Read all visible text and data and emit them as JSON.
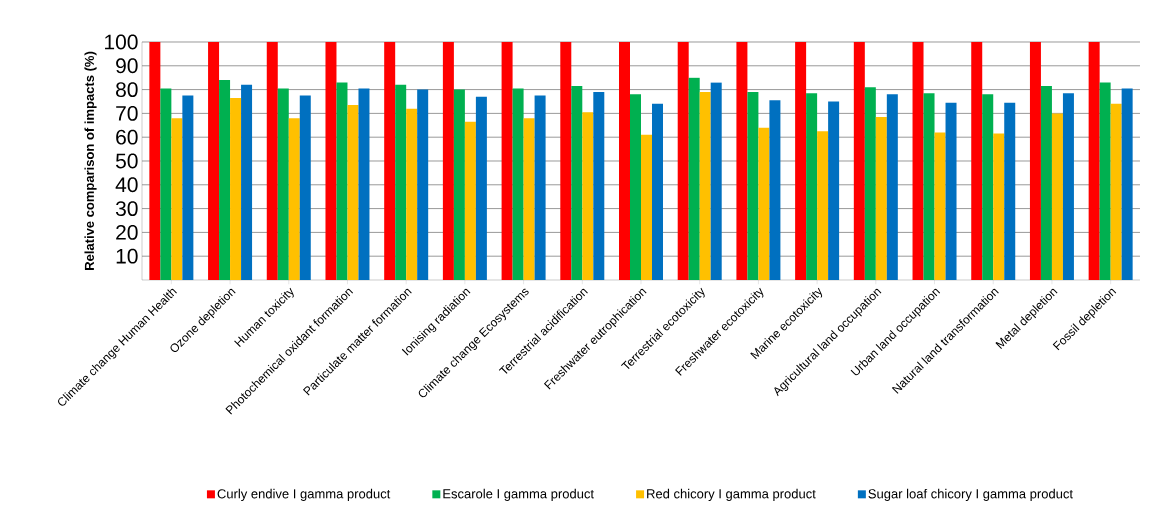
{
  "chart_data": {
    "type": "bar",
    "ylabel": "Relative comparison of impacts (%)",
    "categories": [
      "Climate change Human Health",
      "Ozone depletion",
      "Human toxicity",
      "Photochemical oxidant formation",
      "Particulate matter formation",
      "Ionising radiation",
      "Climate change Ecosystems",
      "Terrestrial acidification",
      "Freshwater eutrophication",
      "Terrestrial ecotoxicity",
      "Freshwater ecotoxicity",
      "Marine ecotoxicity",
      "Agricultural land occupation",
      "Urban land occupation",
      "Natural land transformation",
      "Metal depletion",
      "Fossil depletion"
    ],
    "series": [
      {
        "name": "Curly endive I gamma product",
        "color": "#ff0000",
        "values": [
          100,
          100,
          100,
          100,
          100,
          100,
          100,
          100,
          100,
          100,
          100,
          100,
          100,
          100,
          100,
          100,
          100
        ]
      },
      {
        "name": "Escarole I gamma product",
        "color": "#00b050",
        "values": [
          80.5,
          84,
          80.5,
          83,
          82,
          80,
          80.5,
          81.5,
          78,
          85,
          79,
          78.5,
          81,
          78.5,
          78,
          81.5,
          83
        ]
      },
      {
        "name": "Red chicory I gamma product",
        "color": "#ffc000",
        "values": [
          68,
          76.5,
          68,
          73.5,
          72,
          66.5,
          68,
          70.5,
          61,
          79,
          64,
          62.5,
          68.5,
          62,
          61.5,
          70,
          74
        ]
      },
      {
        "name": "Sugar loaf chicory I gamma product",
        "color": "#0070c0",
        "values": [
          77.5,
          82,
          77.5,
          80.5,
          80,
          77,
          77.5,
          79,
          74,
          83,
          75.5,
          75,
          78,
          74.5,
          74.5,
          78.5,
          80.5
        ]
      }
    ],
    "ylim": [
      0,
      100
    ],
    "yticks": [
      10,
      20,
      30,
      40,
      50,
      60,
      70,
      80,
      90,
      100
    ],
    "grid": "y",
    "legend": "bottom"
  }
}
